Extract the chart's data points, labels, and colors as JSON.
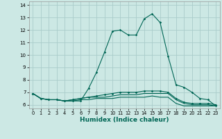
{
  "xlabel": "Humidex (Indice chaleur)",
  "ylabel": "",
  "background_color": "#cce8e4",
  "grid_color": "#aaccca",
  "line_color": "#006655",
  "xlim": [
    -0.5,
    23.5
  ],
  "ylim": [
    5.7,
    14.3
  ],
  "yticks": [
    6,
    7,
    8,
    9,
    10,
    11,
    12,
    13,
    14
  ],
  "xticks": [
    0,
    1,
    2,
    3,
    4,
    5,
    6,
    7,
    8,
    9,
    10,
    11,
    12,
    13,
    14,
    15,
    16,
    17,
    18,
    19,
    20,
    21,
    22,
    23
  ],
  "series1_x": [
    0,
    1,
    2,
    3,
    4,
    5,
    6,
    7,
    8,
    9,
    10,
    11,
    12,
    13,
    14,
    15,
    16,
    17,
    18,
    19,
    20,
    21,
    22,
    23
  ],
  "series1_y": [
    6.9,
    6.5,
    6.4,
    6.4,
    6.3,
    6.3,
    6.3,
    7.3,
    8.6,
    10.2,
    11.9,
    12.0,
    11.6,
    11.6,
    12.9,
    13.3,
    12.6,
    9.9,
    7.6,
    7.4,
    7.0,
    6.5,
    6.4,
    5.9
  ],
  "series2_x": [
    0,
    1,
    2,
    3,
    4,
    5,
    6,
    7,
    8,
    9,
    10,
    11,
    12,
    13,
    14,
    15,
    16,
    17,
    18,
    19,
    20,
    21,
    22,
    23
  ],
  "series2_y": [
    6.9,
    6.5,
    6.4,
    6.4,
    6.3,
    6.4,
    6.5,
    6.6,
    6.7,
    6.8,
    6.9,
    7.0,
    7.0,
    7.0,
    7.1,
    7.1,
    7.1,
    7.0,
    6.5,
    6.2,
    6.1,
    6.1,
    6.1,
    6.0
  ],
  "series3_x": [
    0,
    1,
    2,
    3,
    4,
    5,
    6,
    7,
    8,
    9,
    10,
    11,
    12,
    13,
    14,
    15,
    16,
    17,
    18,
    19,
    20,
    21,
    22,
    23
  ],
  "series3_y": [
    6.9,
    6.5,
    6.4,
    6.4,
    6.3,
    6.4,
    6.5,
    6.6,
    6.6,
    6.6,
    6.7,
    6.8,
    6.8,
    6.8,
    6.9,
    6.9,
    6.9,
    6.9,
    6.4,
    6.1,
    6.0,
    6.0,
    6.0,
    5.9
  ],
  "series4_x": [
    0,
    1,
    2,
    3,
    4,
    5,
    6,
    7,
    8,
    9,
    10,
    11,
    12,
    13,
    14,
    15,
    16,
    17,
    18,
    19,
    20,
    21,
    22,
    23
  ],
  "series4_y": [
    6.9,
    6.5,
    6.4,
    6.4,
    6.3,
    6.3,
    6.4,
    6.4,
    6.5,
    6.5,
    6.5,
    6.6,
    6.6,
    6.6,
    6.6,
    6.7,
    6.6,
    6.6,
    6.1,
    5.9,
    5.9,
    5.9,
    5.9,
    5.9
  ]
}
